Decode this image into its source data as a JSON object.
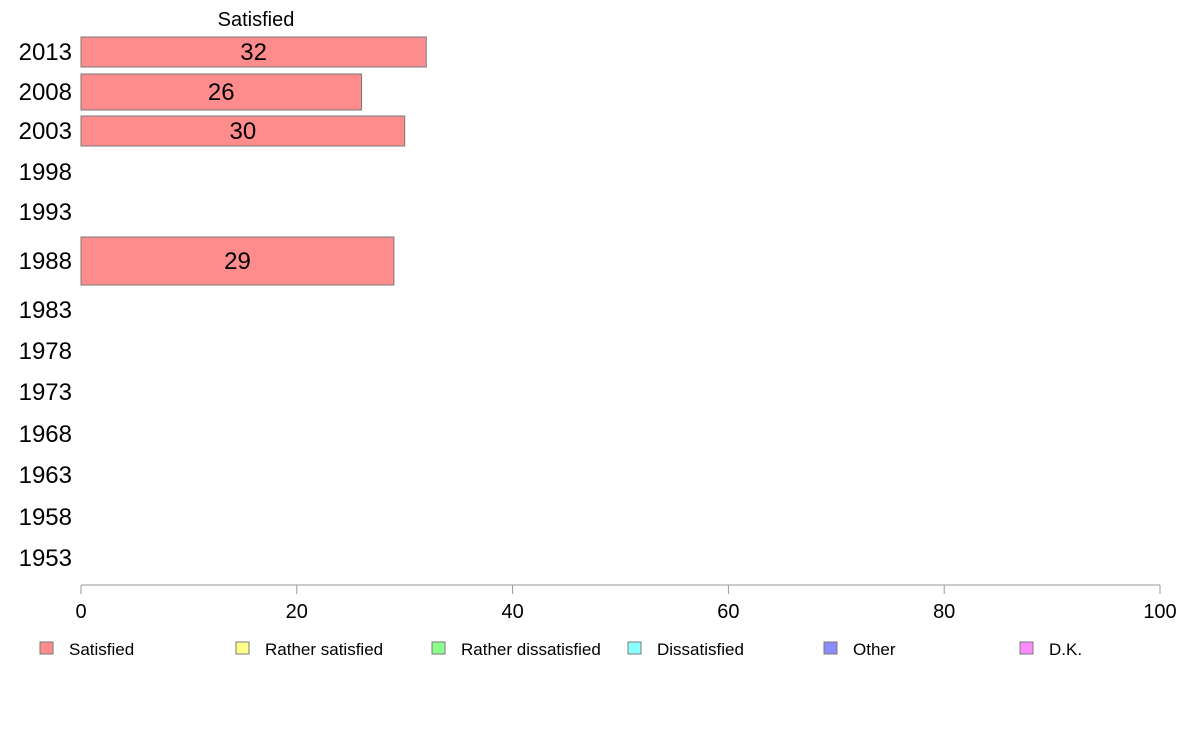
{
  "chart_data": {
    "type": "bar",
    "orientation": "horizontal",
    "stacked": true,
    "title": "",
    "xlabel": "",
    "ylabel": "",
    "xlim": [
      0,
      100
    ],
    "x_ticks": [
      0,
      20,
      40,
      60,
      80,
      100
    ],
    "grid": false,
    "legend_position": "bottom",
    "categories": [
      "2013",
      "2008",
      "2003",
      "1998",
      "1993",
      "1988",
      "1983",
      "1978",
      "1973",
      "1968",
      "1963",
      "1958",
      "1953"
    ],
    "series": [
      {
        "name": "Satisfied",
        "color": "#ff8c8c",
        "values": [
          32,
          26,
          30,
          null,
          null,
          29,
          null,
          null,
          null,
          null,
          null,
          null,
          null
        ]
      },
      {
        "name": "Rather satisfied",
        "color": "#ffff8c",
        "values": [
          null,
          null,
          null,
          null,
          null,
          null,
          null,
          null,
          null,
          null,
          null,
          null,
          null
        ]
      },
      {
        "name": "Rather dissatisfied",
        "color": "#8cff8c",
        "values": [
          null,
          null,
          null,
          null,
          null,
          null,
          null,
          null,
          null,
          null,
          null,
          null,
          null
        ]
      },
      {
        "name": "Dissatisfied",
        "color": "#8cffff",
        "values": [
          null,
          null,
          null,
          null,
          null,
          null,
          null,
          null,
          null,
          null,
          null,
          null,
          null
        ]
      },
      {
        "name": "Other",
        "color": "#8c8cff",
        "values": [
          null,
          null,
          null,
          null,
          null,
          null,
          null,
          null,
          null,
          null,
          null,
          null,
          null
        ]
      },
      {
        "name": "D.K.",
        "color": "#ff8cff",
        "values": [
          null,
          null,
          null,
          null,
          null,
          null,
          null,
          null,
          null,
          null,
          null,
          null,
          null
        ]
      }
    ],
    "series_header": "Satisfied"
  }
}
